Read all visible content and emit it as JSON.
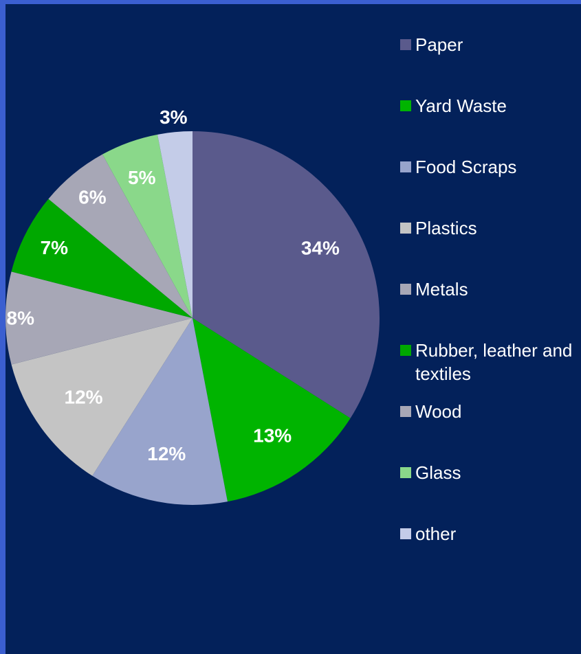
{
  "chart_data": {
    "type": "pie",
    "categories": [
      "Paper",
      "Yard Waste",
      "Food Scraps",
      "Plastics",
      "Metals",
      "Rubber, leather and textiles",
      "Wood",
      "Glass",
      "other"
    ],
    "values": [
      34,
      13,
      12,
      12,
      8,
      7,
      6,
      5,
      3
    ],
    "labels": [
      "34%",
      "13%",
      "12%",
      "12%",
      "8%",
      "7%",
      "6%",
      "5%",
      "3%"
    ],
    "colors": [
      "#5a5a8c",
      "#00b400",
      "#98a4cc",
      "#c4c4c4",
      "#a7a7b6",
      "#00a800",
      "#a7a7b6",
      "#8ad88a",
      "#c4cce8"
    ],
    "legend_position": "right"
  },
  "legend": {
    "items": [
      {
        "label": "Paper",
        "color": "#5a5a8c"
      },
      {
        "label": "Yard Waste",
        "color": "#00b400"
      },
      {
        "label": "Food Scraps",
        "color": "#98a4cc"
      },
      {
        "label": "Plastics",
        "color": "#c4c4c4"
      },
      {
        "label": "Metals",
        "color": "#a7a7b6"
      },
      {
        "label": "Rubber, leather and textiles",
        "color": "#00a800"
      },
      {
        "label": "Wood",
        "color": "#a7a7b6"
      },
      {
        "label": "Glass",
        "color": "#8ad88a"
      },
      {
        "label": "other",
        "color": "#c4cce8"
      }
    ]
  }
}
